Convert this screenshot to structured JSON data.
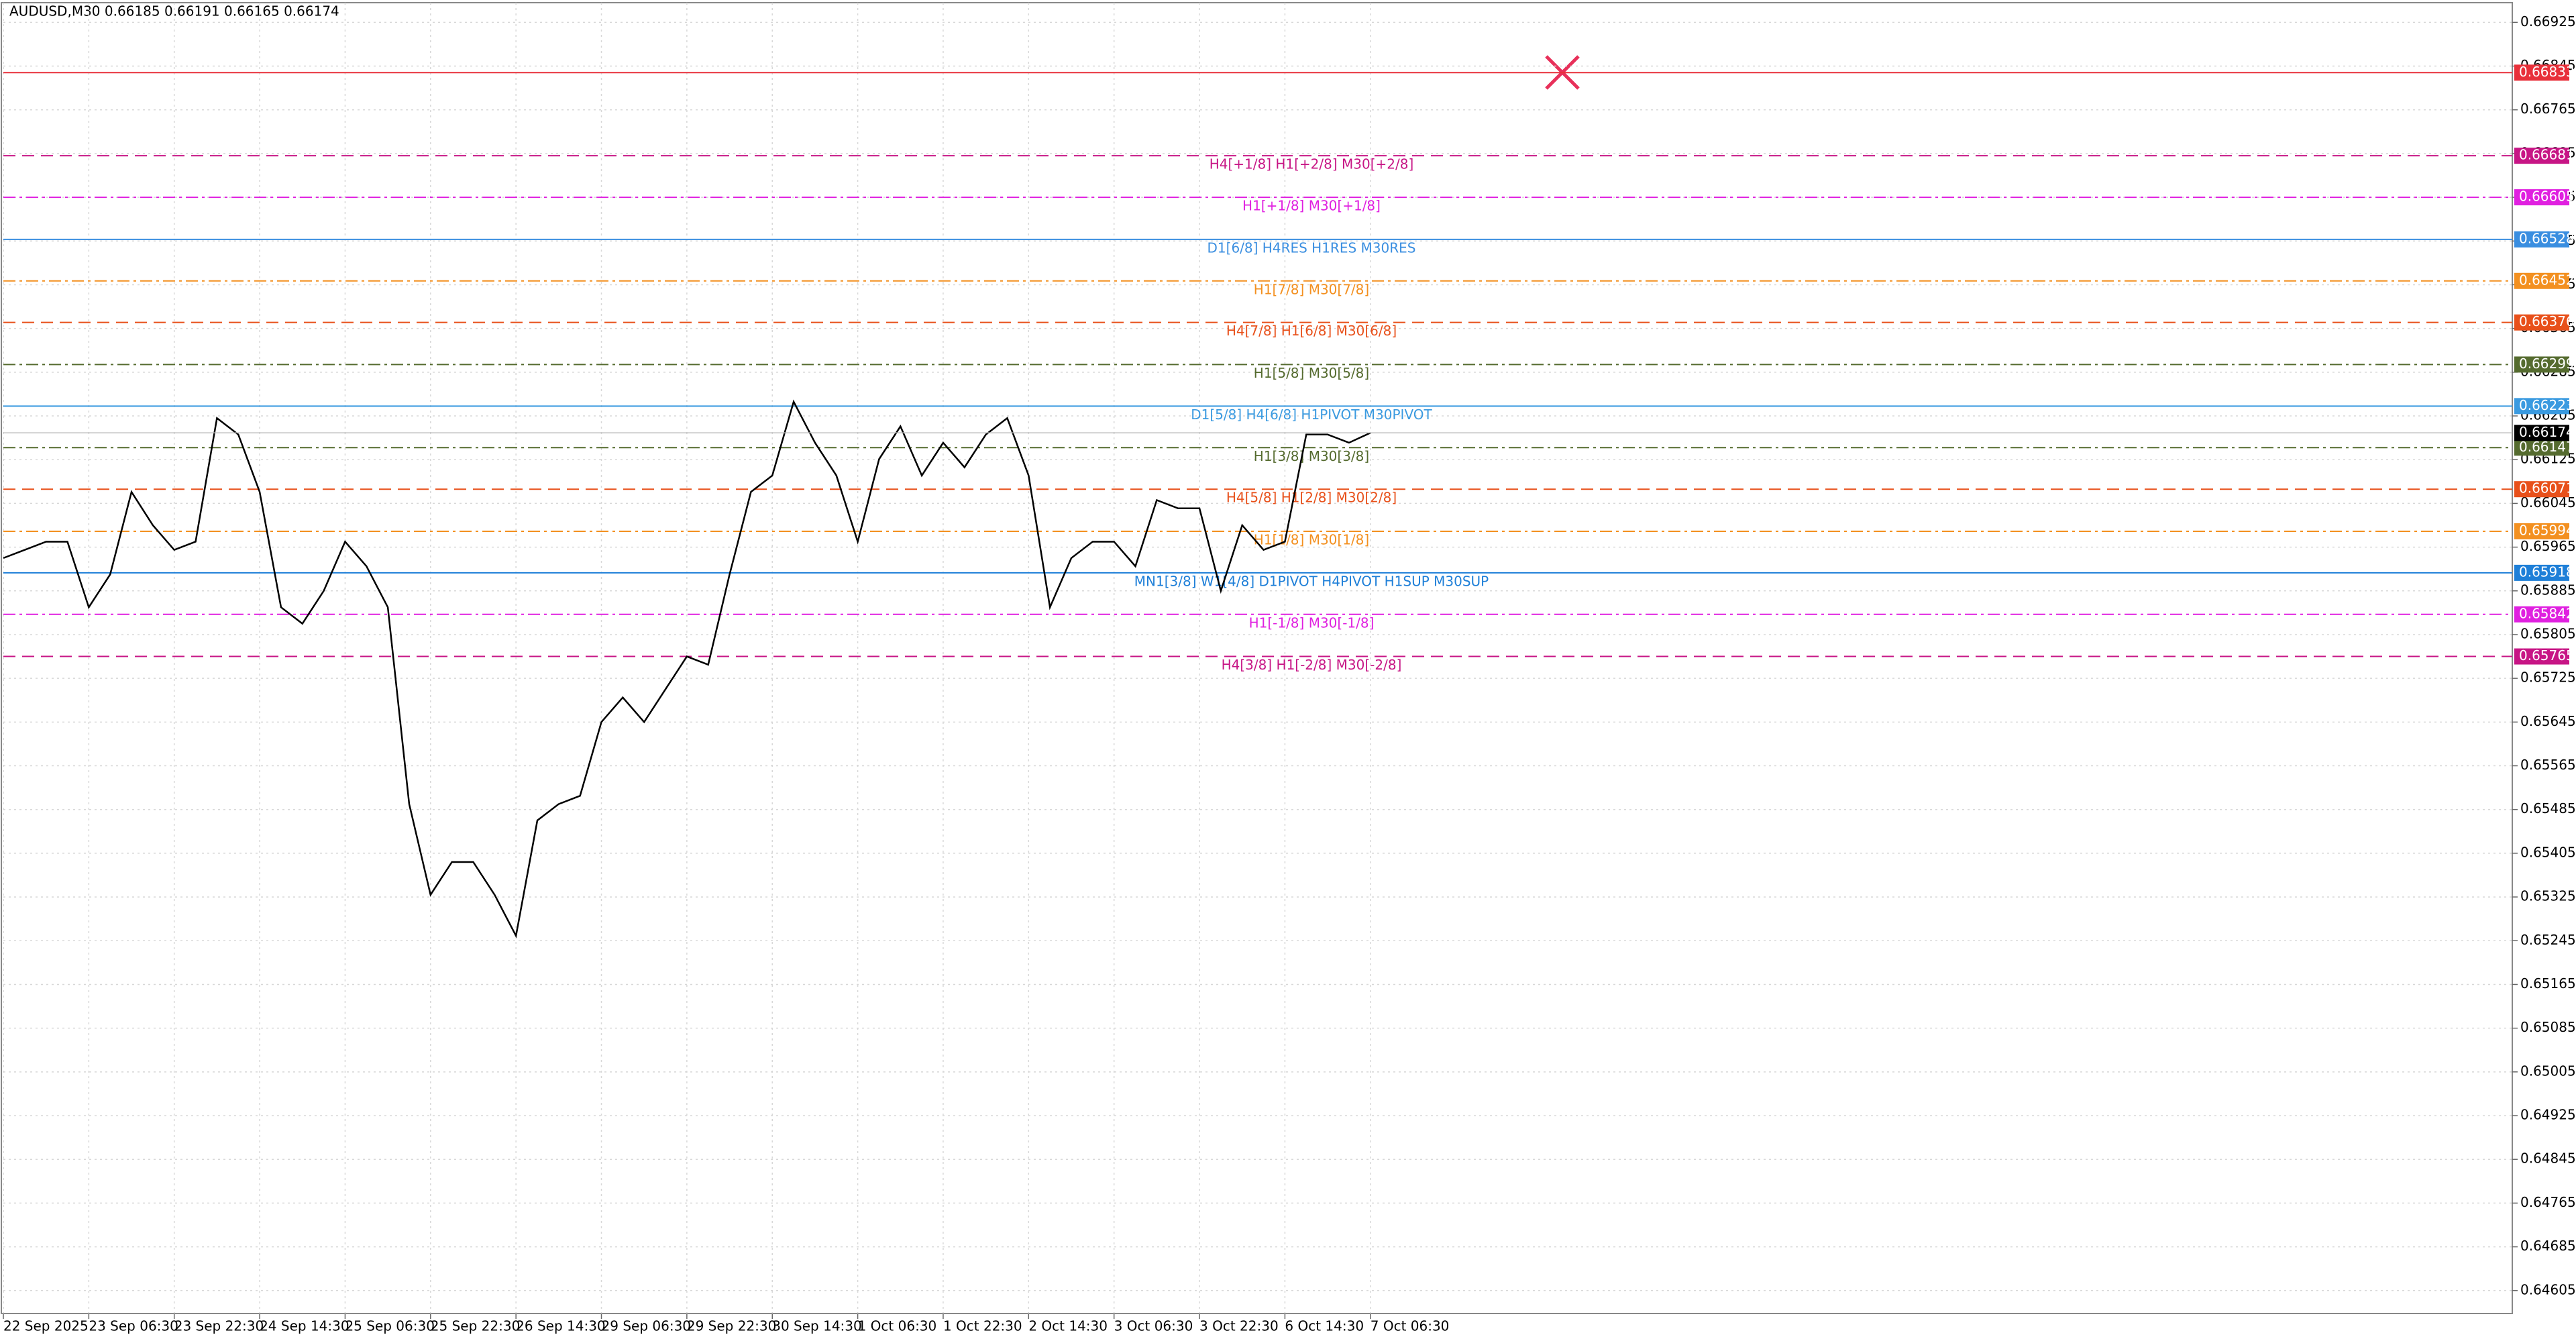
{
  "chart_data": {
    "type": "line",
    "title": "AUDUSD,M30  0.66185 0.66191 0.66165 0.66174",
    "categories": [
      "22 Sep 2025",
      null,
      null,
      null,
      "23 Sep 06:30",
      null,
      null,
      null,
      "23 Sep 22:30",
      null,
      null,
      null,
      "24 Sep 14:30",
      null,
      null,
      null,
      "25 Sep 06:30",
      null,
      null,
      null,
      "25 Sep 22:30",
      null,
      null,
      null,
      "26 Sep 14:30",
      null,
      null,
      null,
      "29 Sep 06:30",
      null,
      null,
      null,
      "29 Sep 22:30",
      null,
      null,
      null,
      "30 Sep 14:30",
      null,
      null,
      null,
      "1 Oct 06:30",
      null,
      null,
      null,
      "1 Oct 22:30",
      null,
      null,
      null,
      "2 Oct 14:30",
      null,
      null,
      null,
      "3 Oct 06:30",
      null,
      null,
      null,
      "3 Oct 22:30",
      null,
      null,
      null,
      "6 Oct 14:30",
      null,
      null,
      null,
      "7 Oct 06:30"
    ],
    "values": [
      0.65945,
      0.6596,
      0.65975,
      0.65975,
      0.65855,
      0.65915,
      0.66066,
      0.66005,
      0.6596,
      0.65975,
      0.66201,
      0.66171,
      0.66066,
      0.65855,
      0.65825,
      0.65885,
      0.65975,
      0.6593,
      0.65855,
      0.65495,
      0.65329,
      0.65389,
      0.65389,
      0.65329,
      0.65254,
      0.65465,
      0.65495,
      0.6551,
      0.65645,
      0.6569,
      0.65645,
      0.65705,
      0.65765,
      0.6575,
      0.65915,
      0.66066,
      0.66096,
      0.66231,
      0.66156,
      0.66096,
      0.65975,
      0.66126,
      0.66186,
      0.66096,
      0.66156,
      0.66111,
      0.66171,
      0.66201,
      0.66096,
      0.65855,
      0.65945,
      0.65975,
      0.65975,
      0.6593,
      0.66051,
      0.66036,
      0.66036,
      0.65885,
      0.66005,
      0.6596,
      0.65975,
      0.66171,
      0.66171,
      0.66156,
      0.66174
    ],
    "color": "#000000",
    "ylim": [
      0.64563,
      0.66961
    ],
    "yticks": [
      0.64605,
      0.64685,
      0.64765,
      0.64845,
      0.64925,
      0.65005,
      0.65085,
      0.65165,
      0.65245,
      0.65325,
      0.65405,
      0.65485,
      0.65565,
      0.65645,
      0.65725,
      0.65805,
      0.65885,
      0.65965,
      0.66045,
      0.66125,
      0.66205,
      0.66285,
      0.66365,
      0.66445,
      0.66525,
      0.66605,
      0.66685,
      0.66765,
      0.66845,
      0.66925
    ],
    "grid": true,
    "levels": [
      {
        "value": 0.66833,
        "color": "#e8303a",
        "style": "solid"
      },
      {
        "value": 0.66681,
        "label": "H4[+1/8] H1[+2/8] M30[+2/8]",
        "color": "#c71585",
        "style": "dashed"
      },
      {
        "value": 0.66605,
        "label": "H1[+1/8] M30[+1/8]",
        "color": "#e020e0",
        "style": "dashdot"
      },
      {
        "value": 0.66528,
        "label": "D1[6/8] H4RES H1RES M30RES",
        "color": "#3a8ee0",
        "style": "solid"
      },
      {
        "value": 0.66452,
        "label": "H1[7/8] M30[7/8]",
        "color": "#f39020",
        "style": "dashdot"
      },
      {
        "value": 0.66376,
        "label": "H4[7/8] H1[6/8] M30[6/8]",
        "color": "#e8501a",
        "style": "dashed"
      },
      {
        "value": 0.66299,
        "label": "H1[5/8] M30[5/8]",
        "color": "#556b2f",
        "style": "dashdot"
      },
      {
        "value": 0.66223,
        "label": "D1[5/8] H4[6/8] H1PIVOT M30PIVOT",
        "color": "#3a9ae0",
        "style": "solid"
      },
      {
        "value": 0.66147,
        "label": "H1[3/8] M30[3/8]",
        "color": "#556b2f",
        "style": "dashdot"
      },
      {
        "value": 0.66071,
        "label": "H4[5/8] H1[2/8] M30[2/8]",
        "color": "#e8501a",
        "style": "dashed"
      },
      {
        "value": 0.65994,
        "label": "H1[1/8] M30[1/8]",
        "color": "#f39020",
        "style": "dashdot"
      },
      {
        "value": 0.65918,
        "label": "MN1[3/8] W1[4/8] D1PIVOT H4PIVOT H1SUP M30SUP",
        "color": "#1e7fd8",
        "style": "solid"
      },
      {
        "value": 0.65842,
        "label": "H1[-1/8] M30[-1/8]",
        "color": "#e020e0",
        "style": "dashdot"
      },
      {
        "value": 0.65765,
        "label": "H4[3/8] H1[-2/8] M30[-2/8]",
        "color": "#c71585",
        "style": "dashed"
      }
    ],
    "current_price": 0.66174
  }
}
